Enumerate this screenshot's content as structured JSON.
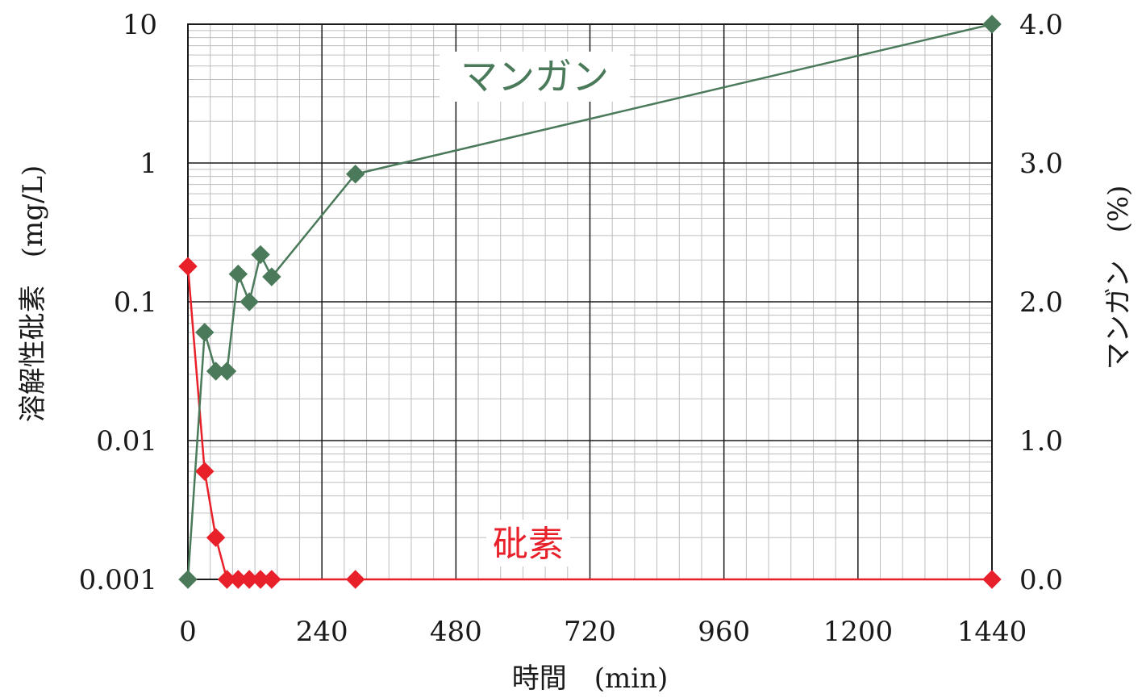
{
  "chart_data": {
    "type": "line",
    "xlabel": "時間　(min)",
    "ylabel_left": "溶解性砒素　(mg/L)",
    "ylabel_right": "マンガン　(%)",
    "xlim": [
      0,
      1440
    ],
    "x_ticks": [
      0,
      240,
      480,
      720,
      960,
      1200,
      1440
    ],
    "x_tick_labels": [
      "0",
      "240",
      "480",
      "720",
      "960",
      "1200",
      "1440"
    ],
    "y_left": {
      "scale": "log",
      "lim": [
        0.001,
        10
      ],
      "ticks": [
        0.001,
        0.01,
        0.1,
        1,
        10
      ],
      "tick_labels": [
        "0.001",
        "0.01",
        "0.1",
        "1",
        "10"
      ]
    },
    "y_right": {
      "scale": "linear",
      "lim": [
        0,
        4
      ],
      "ticks": [
        0,
        1,
        2,
        3,
        4
      ],
      "tick_labels": [
        "0.0",
        "1.0",
        "2.0",
        "3.0",
        "4.0"
      ]
    },
    "grid": true,
    "series": [
      {
        "name": "マンガン",
        "axis": "right",
        "color": "#4a7a5a",
        "marker": "diamond",
        "x": [
          0,
          30,
          50,
          70,
          90,
          110,
          130,
          150,
          300,
          1440
        ],
        "y": [
          0.0,
          1.78,
          1.5,
          1.5,
          2.2,
          2.0,
          2.34,
          2.18,
          2.92,
          4.0
        ]
      },
      {
        "name": "砒素",
        "axis": "left",
        "color": "#e8202a",
        "marker": "diamond",
        "x": [
          0,
          30,
          50,
          70,
          90,
          110,
          130,
          150,
          300,
          1440
        ],
        "y": [
          0.18,
          0.006,
          0.002,
          0.001,
          0.001,
          0.001,
          0.001,
          0.001,
          0.001,
          0.001
        ]
      }
    ],
    "annotations": [
      {
        "text": "マンガン",
        "series": "マンガン",
        "color": "#4a7a5a"
      },
      {
        "text": "砒素",
        "series": "砒素",
        "color": "#e8202a"
      }
    ]
  }
}
